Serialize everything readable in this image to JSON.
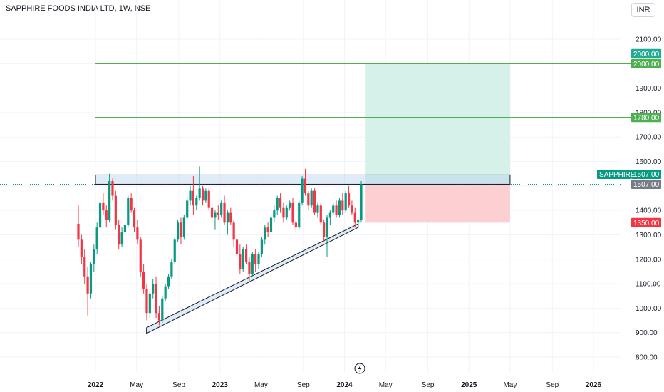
{
  "header": {
    "title": "SAPPHIRE FOODS INDIA LTD, 1W, NSE",
    "currency": "INR"
  },
  "chart_data": {
    "type": "candlestick",
    "symbol": "SAPPHIRE",
    "ylim": [
      760,
      2150
    ],
    "y_ticks": [
      "800.00",
      "900.00",
      "1000.00",
      "1100.00",
      "1200.00",
      "1300.00",
      "1400.00",
      "1600.00",
      "1700.00",
      "1800.00",
      "1900.00",
      "2100.00"
    ],
    "x_ticks": [
      {
        "label": "2022",
        "t": 2022.0,
        "bold": true
      },
      {
        "label": "May",
        "t": 2022.33,
        "bold": false
      },
      {
        "label": "Sep",
        "t": 2022.67,
        "bold": false
      },
      {
        "label": "2023",
        "t": 2023.0,
        "bold": true
      },
      {
        "label": "May",
        "t": 2023.33,
        "bold": false
      },
      {
        "label": "Sep",
        "t": 2023.67,
        "bold": false
      },
      {
        "label": "2024",
        "t": 2024.0,
        "bold": true
      },
      {
        "label": "May",
        "t": 2024.33,
        "bold": false
      },
      {
        "label": "Sep",
        "t": 2024.67,
        "bold": false
      },
      {
        "label": "2025",
        "t": 2025.0,
        "bold": true
      },
      {
        "label": "May",
        "t": 2025.33,
        "bold": false
      },
      {
        "label": "Sep",
        "t": 2025.67,
        "bold": false
      },
      {
        "label": "2026",
        "t": 2026.0,
        "bold": true
      }
    ],
    "xlim": [
      2021.21,
      2026.25
    ],
    "horizontal_lines": [
      {
        "value": 2000,
        "label": "2000.00",
        "color": "#089981"
      },
      {
        "value": 1780,
        "label": "1780.00",
        "color": "#089981"
      }
    ],
    "resistance_box": {
      "t0": 2022.0,
      "t1": 2025.33,
      "y_low": 1507,
      "y_high": 1545
    },
    "trendline": {
      "t0": 2022.41,
      "y0": 920,
      "t1": 2024.11,
      "y1": 1345
    },
    "position": {
      "t0": 2024.17,
      "t1": 2025.33,
      "entry": 1507,
      "target": 2000,
      "stop": 1350,
      "profit_color": "#d6f0ea",
      "loss_color": "#fcd0d3"
    },
    "current_price": {
      "value": 1507,
      "label": "1507.00",
      "symbol_label": "SAPPHIRE"
    },
    "price_tags": [
      {
        "label": "2000.00",
        "value": 2000,
        "offset": -14,
        "color": "#22ab94"
      },
      {
        "label": "2000.00",
        "value": 2000,
        "offset": 0,
        "color": "#4caf50"
      },
      {
        "label": "1780.00",
        "value": 1780,
        "offset": 0,
        "color": "#4caf50"
      },
      {
        "label": "1507.00",
        "value": 1507,
        "offset": -14,
        "color": "#089981"
      },
      {
        "label": "1507.00",
        "value": 1507,
        "offset": 0,
        "color": "#787b86"
      },
      {
        "label": "1350.00",
        "value": 1350,
        "offset": 0,
        "color": "#f23645"
      }
    ],
    "candles": [
      [
        1345,
        1420,
        1250,
        1280
      ],
      [
        1280,
        1300,
        1180,
        1210
      ],
      [
        1210,
        1240,
        1100,
        1130
      ],
      [
        1130,
        1170,
        970,
        1060
      ],
      [
        1060,
        1190,
        1040,
        1180
      ],
      [
        1180,
        1260,
        1150,
        1240
      ],
      [
        1240,
        1350,
        1220,
        1330
      ],
      [
        1330,
        1450,
        1310,
        1430
      ],
      [
        1430,
        1470,
        1380,
        1400
      ],
      [
        1400,
        1420,
        1330,
        1360
      ],
      [
        1360,
        1550,
        1350,
        1520
      ],
      [
        1520,
        1530,
        1440,
        1460
      ],
      [
        1460,
        1480,
        1320,
        1340
      ],
      [
        1340,
        1360,
        1240,
        1260
      ],
      [
        1260,
        1330,
        1250,
        1310
      ],
      [
        1310,
        1350,
        1290,
        1340
      ],
      [
        1340,
        1460,
        1330,
        1450
      ],
      [
        1450,
        1470,
        1390,
        1400
      ],
      [
        1400,
        1410,
        1310,
        1330
      ],
      [
        1330,
        1360,
        1260,
        1280
      ],
      [
        1280,
        1290,
        1130,
        1150
      ],
      [
        1150,
        1180,
        1060,
        1080
      ],
      [
        1080,
        1100,
        950,
        980
      ],
      [
        980,
        1070,
        960,
        1060
      ],
      [
        1060,
        1120,
        1040,
        1100
      ],
      [
        1100,
        1130,
        960,
        980
      ],
      [
        980,
        1010,
        930,
        950
      ],
      [
        950,
        1050,
        940,
        1040
      ],
      [
        1040,
        1100,
        1030,
        1090
      ],
      [
        1090,
        1140,
        1080,
        1130
      ],
      [
        1130,
        1200,
        1120,
        1190
      ],
      [
        1190,
        1290,
        1180,
        1280
      ],
      [
        1280,
        1360,
        1270,
        1350
      ],
      [
        1350,
        1370,
        1260,
        1290
      ],
      [
        1290,
        1380,
        1280,
        1370
      ],
      [
        1370,
        1450,
        1360,
        1440
      ],
      [
        1440,
        1500,
        1420,
        1480
      ],
      [
        1480,
        1540,
        1380,
        1420
      ],
      [
        1420,
        1460,
        1400,
        1450
      ],
      [
        1450,
        1580,
        1440,
        1490
      ],
      [
        1490,
        1500,
        1420,
        1440
      ],
      [
        1440,
        1490,
        1430,
        1480
      ],
      [
        1480,
        1490,
        1400,
        1410
      ],
      [
        1410,
        1430,
        1350,
        1370
      ],
      [
        1370,
        1400,
        1320,
        1390
      ],
      [
        1390,
        1420,
        1360,
        1380
      ],
      [
        1380,
        1440,
        1370,
        1430
      ],
      [
        1430,
        1460,
        1340,
        1350
      ],
      [
        1350,
        1400,
        1300,
        1390
      ],
      [
        1390,
        1410,
        1340,
        1350
      ],
      [
        1350,
        1360,
        1250,
        1280
      ],
      [
        1280,
        1310,
        1200,
        1220
      ],
      [
        1220,
        1260,
        1140,
        1160
      ],
      [
        1160,
        1250,
        1150,
        1240
      ],
      [
        1240,
        1260,
        1180,
        1190
      ],
      [
        1190,
        1210,
        1110,
        1140
      ],
      [
        1140,
        1230,
        1130,
        1220
      ],
      [
        1220,
        1240,
        1150,
        1180
      ],
      [
        1180,
        1230,
        1160,
        1220
      ],
      [
        1220,
        1290,
        1210,
        1280
      ],
      [
        1280,
        1340,
        1260,
        1330
      ],
      [
        1330,
        1350,
        1290,
        1310
      ],
      [
        1310,
        1380,
        1300,
        1370
      ],
      [
        1370,
        1420,
        1350,
        1400
      ],
      [
        1400,
        1460,
        1380,
        1450
      ],
      [
        1450,
        1470,
        1390,
        1410
      ],
      [
        1410,
        1430,
        1350,
        1370
      ],
      [
        1370,
        1420,
        1360,
        1410
      ],
      [
        1410,
        1440,
        1400,
        1430
      ],
      [
        1430,
        1450,
        1340,
        1350
      ],
      [
        1350,
        1360,
        1310,
        1330
      ],
      [
        1330,
        1440,
        1320,
        1430
      ],
      [
        1430,
        1540,
        1420,
        1530
      ],
      [
        1530,
        1570,
        1460,
        1470
      ],
      [
        1470,
        1480,
        1400,
        1420
      ],
      [
        1420,
        1490,
        1410,
        1480
      ],
      [
        1480,
        1490,
        1380,
        1390
      ],
      [
        1390,
        1430,
        1370,
        1420
      ],
      [
        1420,
        1430,
        1340,
        1350
      ],
      [
        1350,
        1360,
        1270,
        1290
      ],
      [
        1290,
        1380,
        1210,
        1370
      ],
      [
        1370,
        1400,
        1340,
        1390
      ],
      [
        1390,
        1430,
        1380,
        1420
      ],
      [
        1420,
        1440,
        1370,
        1380
      ],
      [
        1380,
        1450,
        1370,
        1440
      ],
      [
        1440,
        1470,
        1380,
        1400
      ],
      [
        1400,
        1480,
        1390,
        1470
      ],
      [
        1470,
        1500,
        1410,
        1420
      ],
      [
        1420,
        1440,
        1380,
        1390
      ],
      [
        1390,
        1410,
        1330,
        1350
      ],
      [
        1350,
        1370,
        1330,
        1360
      ],
      [
        1360,
        1520,
        1350,
        1507
      ]
    ]
  }
}
